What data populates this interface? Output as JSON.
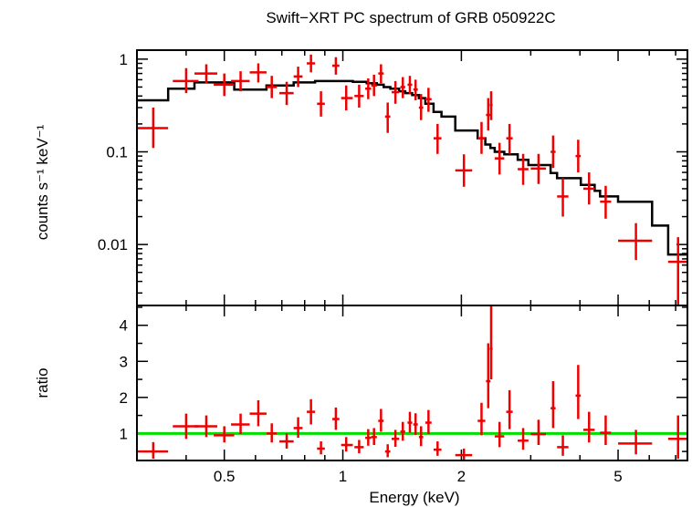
{
  "chart_data": {
    "type": "scatter",
    "title": "Swift−XRT PC spectrum of GRB 050922C",
    "xlabel": "Energy (keV)",
    "x_scale": "log",
    "xlim": [
      0.3,
      7.5
    ],
    "x_ticks": [
      {
        "value": 0.5,
        "label": "0.5"
      },
      {
        "value": 1,
        "label": "1"
      },
      {
        "value": 2,
        "label": "2"
      },
      {
        "value": 5,
        "label": "5"
      }
    ],
    "panels": [
      {
        "name": "spectrum",
        "ylabel": "counts s⁻¹ keV⁻¹",
        "y_scale": "log",
        "ylim": [
          0.0022,
          1.25
        ],
        "y_ticks": [
          {
            "value": 1,
            "label": "1"
          },
          {
            "value": 0.1,
            "label": "0.1"
          },
          {
            "value": 0.01,
            "label": "0.01"
          }
        ],
        "data": [
          {
            "x": 0.33,
            "xlo": 0.3,
            "xhi": 0.36,
            "y": 0.18,
            "ylo": 0.11,
            "yhi": 0.3
          },
          {
            "x": 0.4,
            "xlo": 0.37,
            "xhi": 0.43,
            "y": 0.58,
            "ylo": 0.43,
            "yhi": 0.8
          },
          {
            "x": 0.45,
            "xlo": 0.42,
            "xhi": 0.48,
            "y": 0.7,
            "ylo": 0.55,
            "yhi": 0.88
          },
          {
            "x": 0.5,
            "xlo": 0.47,
            "xhi": 0.53,
            "y": 0.53,
            "ylo": 0.4,
            "yhi": 0.7
          },
          {
            "x": 0.55,
            "xlo": 0.52,
            "xhi": 0.58,
            "y": 0.58,
            "ylo": 0.45,
            "yhi": 0.74
          },
          {
            "x": 0.61,
            "xlo": 0.58,
            "xhi": 0.64,
            "y": 0.72,
            "ylo": 0.56,
            "yhi": 0.9
          },
          {
            "x": 0.66,
            "xlo": 0.64,
            "xhi": 0.68,
            "y": 0.5,
            "ylo": 0.38,
            "yhi": 0.66
          },
          {
            "x": 0.72,
            "xlo": 0.69,
            "xhi": 0.75,
            "y": 0.43,
            "ylo": 0.32,
            "yhi": 0.57
          },
          {
            "x": 0.77,
            "xlo": 0.75,
            "xhi": 0.79,
            "y": 0.65,
            "ylo": 0.5,
            "yhi": 0.83
          },
          {
            "x": 0.83,
            "xlo": 0.81,
            "xhi": 0.85,
            "y": 0.9,
            "ylo": 0.72,
            "yhi": 1.12
          },
          {
            "x": 0.88,
            "xlo": 0.86,
            "xhi": 0.9,
            "y": 0.33,
            "ylo": 0.24,
            "yhi": 0.45
          },
          {
            "x": 0.96,
            "xlo": 0.94,
            "xhi": 0.98,
            "y": 0.85,
            "ylo": 0.68,
            "yhi": 1.05
          },
          {
            "x": 1.02,
            "xlo": 0.99,
            "xhi": 1.06,
            "y": 0.38,
            "ylo": 0.28,
            "yhi": 0.52
          },
          {
            "x": 1.1,
            "xlo": 1.07,
            "xhi": 1.13,
            "y": 0.4,
            "ylo": 0.3,
            "yhi": 0.53
          },
          {
            "x": 1.16,
            "xlo": 1.14,
            "xhi": 1.18,
            "y": 0.48,
            "ylo": 0.37,
            "yhi": 0.62
          },
          {
            "x": 1.2,
            "xlo": 1.18,
            "xhi": 1.22,
            "y": 0.52,
            "ylo": 0.4,
            "yhi": 0.68
          },
          {
            "x": 1.25,
            "xlo": 1.23,
            "xhi": 1.27,
            "y": 0.7,
            "ylo": 0.55,
            "yhi": 0.88
          },
          {
            "x": 1.3,
            "xlo": 1.28,
            "xhi": 1.32,
            "y": 0.24,
            "ylo": 0.16,
            "yhi": 0.34
          },
          {
            "x": 1.36,
            "xlo": 1.33,
            "xhi": 1.39,
            "y": 0.44,
            "ylo": 0.33,
            "yhi": 0.58
          },
          {
            "x": 1.42,
            "xlo": 1.4,
            "xhi": 1.44,
            "y": 0.5,
            "ylo": 0.38,
            "yhi": 0.64
          },
          {
            "x": 1.48,
            "xlo": 1.46,
            "xhi": 1.5,
            "y": 0.53,
            "ylo": 0.42,
            "yhi": 0.66
          },
          {
            "x": 1.53,
            "xlo": 1.51,
            "xhi": 1.55,
            "y": 0.47,
            "ylo": 0.36,
            "yhi": 0.6
          },
          {
            "x": 1.58,
            "xlo": 1.56,
            "xhi": 1.6,
            "y": 0.3,
            "ylo": 0.22,
            "yhi": 0.42
          },
          {
            "x": 1.65,
            "xlo": 1.62,
            "xhi": 1.68,
            "y": 0.37,
            "ylo": 0.27,
            "yhi": 0.49
          },
          {
            "x": 1.74,
            "xlo": 1.7,
            "xhi": 1.78,
            "y": 0.14,
            "ylo": 0.095,
            "yhi": 0.2
          },
          {
            "x": 2.03,
            "xlo": 1.93,
            "xhi": 2.13,
            "y": 0.063,
            "ylo": 0.042,
            "yhi": 0.094
          },
          {
            "x": 2.25,
            "xlo": 2.2,
            "xhi": 2.3,
            "y": 0.14,
            "ylo": 0.095,
            "yhi": 0.21
          },
          {
            "x": 2.34,
            "xlo": 2.31,
            "xhi": 2.37,
            "y": 0.25,
            "ylo": 0.17,
            "yhi": 0.38
          },
          {
            "x": 2.38,
            "xlo": 2.36,
            "xhi": 2.4,
            "y": 0.32,
            "ylo": 0.22,
            "yhi": 0.45
          },
          {
            "x": 2.5,
            "xlo": 2.43,
            "xhi": 2.57,
            "y": 0.085,
            "ylo": 0.057,
            "yhi": 0.125
          },
          {
            "x": 2.65,
            "xlo": 2.6,
            "xhi": 2.7,
            "y": 0.14,
            "ylo": 0.095,
            "yhi": 0.2
          },
          {
            "x": 2.87,
            "xlo": 2.78,
            "xhi": 2.96,
            "y": 0.065,
            "ylo": 0.044,
            "yhi": 0.095
          },
          {
            "x": 3.14,
            "xlo": 3.0,
            "xhi": 3.28,
            "y": 0.066,
            "ylo": 0.045,
            "yhi": 0.095
          },
          {
            "x": 3.42,
            "xlo": 3.37,
            "xhi": 3.47,
            "y": 0.1,
            "ylo": 0.067,
            "yhi": 0.15
          },
          {
            "x": 3.62,
            "xlo": 3.5,
            "xhi": 3.74,
            "y": 0.033,
            "ylo": 0.02,
            "yhi": 0.052
          },
          {
            "x": 3.96,
            "xlo": 3.9,
            "xhi": 4.02,
            "y": 0.09,
            "ylo": 0.06,
            "yhi": 0.135
          },
          {
            "x": 4.22,
            "xlo": 4.08,
            "xhi": 4.36,
            "y": 0.04,
            "ylo": 0.027,
            "yhi": 0.06
          },
          {
            "x": 4.65,
            "xlo": 4.5,
            "xhi": 4.8,
            "y": 0.029,
            "ylo": 0.019,
            "yhi": 0.043
          },
          {
            "x": 5.55,
            "xlo": 5.0,
            "xhi": 6.1,
            "y": 0.011,
            "ylo": 0.0068,
            "yhi": 0.017
          },
          {
            "x": 7.1,
            "xlo": 6.7,
            "xhi": 7.5,
            "y": 0.0065,
            "ylo": 0.0022,
            "yhi": 0.012
          }
        ],
        "model": [
          [
            0.3,
            0.36
          ],
          [
            0.36,
            0.48
          ],
          [
            0.42,
            0.56
          ],
          [
            0.53,
            0.47
          ],
          [
            0.64,
            0.52
          ],
          [
            0.75,
            0.56
          ],
          [
            0.85,
            0.58
          ],
          [
            1.06,
            0.57
          ],
          [
            1.15,
            0.55
          ],
          [
            1.22,
            0.53
          ],
          [
            1.27,
            0.5
          ],
          [
            1.32,
            0.48
          ],
          [
            1.39,
            0.45
          ],
          [
            1.44,
            0.43
          ],
          [
            1.5,
            0.41
          ],
          [
            1.56,
            0.38
          ],
          [
            1.62,
            0.33
          ],
          [
            1.7,
            0.27
          ],
          [
            1.78,
            0.24
          ],
          [
            1.93,
            0.17
          ],
          [
            2.2,
            0.14
          ],
          [
            2.3,
            0.12
          ],
          [
            2.37,
            0.11
          ],
          [
            2.43,
            0.1
          ],
          [
            2.57,
            0.094
          ],
          [
            2.78,
            0.082
          ],
          [
            2.96,
            0.072
          ],
          [
            3.37,
            0.059
          ],
          [
            3.5,
            0.052
          ],
          [
            4.02,
            0.044
          ],
          [
            4.36,
            0.038
          ],
          [
            4.5,
            0.033
          ],
          [
            5.0,
            0.029
          ],
          [
            6.1,
            0.016
          ],
          [
            6.7,
            0.0078
          ],
          [
            7.5,
            0.0078
          ]
        ]
      },
      {
        "name": "ratio",
        "ylabel": "ratio",
        "y_scale": "linear",
        "ylim": [
          0.25,
          4.55
        ],
        "y_ticks": [
          {
            "value": 1,
            "label": "1"
          },
          {
            "value": 2,
            "label": "2"
          },
          {
            "value": 3,
            "label": "3"
          },
          {
            "value": 4,
            "label": "4"
          }
        ],
        "reference_line": 1,
        "data": [
          {
            "x": 0.33,
            "xlo": 0.3,
            "xhi": 0.36,
            "y": 0.5,
            "ylo": 0.3,
            "yhi": 0.76
          },
          {
            "x": 0.4,
            "xlo": 0.37,
            "xhi": 0.43,
            "y": 1.2,
            "ylo": 0.85,
            "yhi": 1.55
          },
          {
            "x": 0.45,
            "xlo": 0.42,
            "xhi": 0.48,
            "y": 1.2,
            "ylo": 0.9,
            "yhi": 1.5
          },
          {
            "x": 0.5,
            "xlo": 0.47,
            "xhi": 0.53,
            "y": 0.95,
            "ylo": 0.75,
            "yhi": 1.2
          },
          {
            "x": 0.55,
            "xlo": 0.52,
            "xhi": 0.58,
            "y": 1.25,
            "ylo": 0.98,
            "yhi": 1.55
          },
          {
            "x": 0.61,
            "xlo": 0.58,
            "xhi": 0.64,
            "y": 1.55,
            "ylo": 1.2,
            "yhi": 1.92
          },
          {
            "x": 0.66,
            "xlo": 0.64,
            "xhi": 0.68,
            "y": 1.0,
            "ylo": 0.75,
            "yhi": 1.28
          },
          {
            "x": 0.72,
            "xlo": 0.69,
            "xhi": 0.75,
            "y": 0.78,
            "ylo": 0.58,
            "yhi": 1.0
          },
          {
            "x": 0.77,
            "xlo": 0.75,
            "xhi": 0.79,
            "y": 1.15,
            "ylo": 0.88,
            "yhi": 1.45
          },
          {
            "x": 0.83,
            "xlo": 0.81,
            "xhi": 0.85,
            "y": 1.6,
            "ylo": 1.25,
            "yhi": 1.95
          },
          {
            "x": 0.88,
            "xlo": 0.86,
            "xhi": 0.9,
            "y": 0.58,
            "ylo": 0.42,
            "yhi": 0.78
          },
          {
            "x": 0.96,
            "xlo": 0.94,
            "xhi": 0.98,
            "y": 1.4,
            "ylo": 1.1,
            "yhi": 1.72
          },
          {
            "x": 1.02,
            "xlo": 0.99,
            "xhi": 1.06,
            "y": 0.68,
            "ylo": 0.5,
            "yhi": 0.9
          },
          {
            "x": 1.1,
            "xlo": 1.07,
            "xhi": 1.13,
            "y": 0.62,
            "ylo": 0.45,
            "yhi": 0.82
          },
          {
            "x": 1.16,
            "xlo": 1.14,
            "xhi": 1.18,
            "y": 0.88,
            "ylo": 0.66,
            "yhi": 1.12
          },
          {
            "x": 1.2,
            "xlo": 1.18,
            "xhi": 1.22,
            "y": 0.9,
            "ylo": 0.68,
            "yhi": 1.15
          },
          {
            "x": 1.25,
            "xlo": 1.23,
            "xhi": 1.27,
            "y": 1.35,
            "ylo": 1.05,
            "yhi": 1.68
          },
          {
            "x": 1.3,
            "xlo": 1.28,
            "xhi": 1.32,
            "y": 0.5,
            "ylo": 0.34,
            "yhi": 0.7
          },
          {
            "x": 1.36,
            "xlo": 1.33,
            "xhi": 1.39,
            "y": 0.85,
            "ylo": 0.63,
            "yhi": 1.1
          },
          {
            "x": 1.42,
            "xlo": 1.4,
            "xhi": 1.44,
            "y": 1.05,
            "ylo": 0.8,
            "yhi": 1.32
          },
          {
            "x": 1.48,
            "xlo": 1.46,
            "xhi": 1.5,
            "y": 1.3,
            "ylo": 1.02,
            "yhi": 1.6
          },
          {
            "x": 1.53,
            "xlo": 1.51,
            "xhi": 1.55,
            "y": 1.25,
            "ylo": 0.96,
            "yhi": 1.56
          },
          {
            "x": 1.58,
            "xlo": 1.56,
            "xhi": 1.6,
            "y": 0.9,
            "ylo": 0.65,
            "yhi": 1.2
          },
          {
            "x": 1.65,
            "xlo": 1.62,
            "xhi": 1.68,
            "y": 1.3,
            "ylo": 0.98,
            "yhi": 1.65
          },
          {
            "x": 1.74,
            "xlo": 1.7,
            "xhi": 1.78,
            "y": 0.55,
            "ylo": 0.38,
            "yhi": 0.78
          },
          {
            "x": 2.03,
            "xlo": 1.93,
            "xhi": 2.13,
            "y": 0.4,
            "ylo": 0.27,
            "yhi": 0.58
          },
          {
            "x": 2.25,
            "xlo": 2.2,
            "xhi": 2.3,
            "y": 1.35,
            "ylo": 0.95,
            "yhi": 1.85
          },
          {
            "x": 2.34,
            "xlo": 2.31,
            "xhi": 2.37,
            "y": 2.45,
            "ylo": 1.7,
            "yhi": 3.5
          },
          {
            "x": 2.38,
            "xlo": 2.36,
            "xhi": 2.4,
            "y": 3.35,
            "ylo": 2.5,
            "yhi": 4.6
          },
          {
            "x": 2.5,
            "xlo": 2.43,
            "xhi": 2.57,
            "y": 0.92,
            "ylo": 0.62,
            "yhi": 1.32
          },
          {
            "x": 2.65,
            "xlo": 2.6,
            "xhi": 2.7,
            "y": 1.6,
            "ylo": 1.12,
            "yhi": 2.2
          },
          {
            "x": 2.87,
            "xlo": 2.78,
            "xhi": 2.96,
            "y": 0.8,
            "ylo": 0.55,
            "yhi": 1.15
          },
          {
            "x": 3.14,
            "xlo": 3.0,
            "xhi": 3.28,
            "y": 0.98,
            "ylo": 0.68,
            "yhi": 1.38
          },
          {
            "x": 3.42,
            "xlo": 3.37,
            "xhi": 3.47,
            "y": 1.7,
            "ylo": 1.15,
            "yhi": 2.45
          },
          {
            "x": 3.62,
            "xlo": 3.5,
            "xhi": 3.74,
            "y": 0.62,
            "ylo": 0.38,
            "yhi": 0.95
          },
          {
            "x": 3.96,
            "xlo": 3.9,
            "xhi": 4.02,
            "y": 2.05,
            "ylo": 1.4,
            "yhi": 2.9
          },
          {
            "x": 4.22,
            "xlo": 4.08,
            "xhi": 4.36,
            "y": 1.1,
            "ylo": 0.75,
            "yhi": 1.6
          },
          {
            "x": 4.65,
            "xlo": 4.5,
            "xhi": 4.8,
            "y": 1.02,
            "ylo": 0.68,
            "yhi": 1.5
          },
          {
            "x": 5.55,
            "xlo": 5.0,
            "xhi": 6.1,
            "y": 0.72,
            "ylo": 0.42,
            "yhi": 1.1
          },
          {
            "x": 7.1,
            "xlo": 6.7,
            "xhi": 7.5,
            "y": 0.85,
            "ylo": 0.3,
            "yhi": 1.5
          }
        ]
      }
    ],
    "colors": {
      "data": "#ee0000",
      "model": "#000000",
      "reference_line": "#00dd00"
    }
  }
}
